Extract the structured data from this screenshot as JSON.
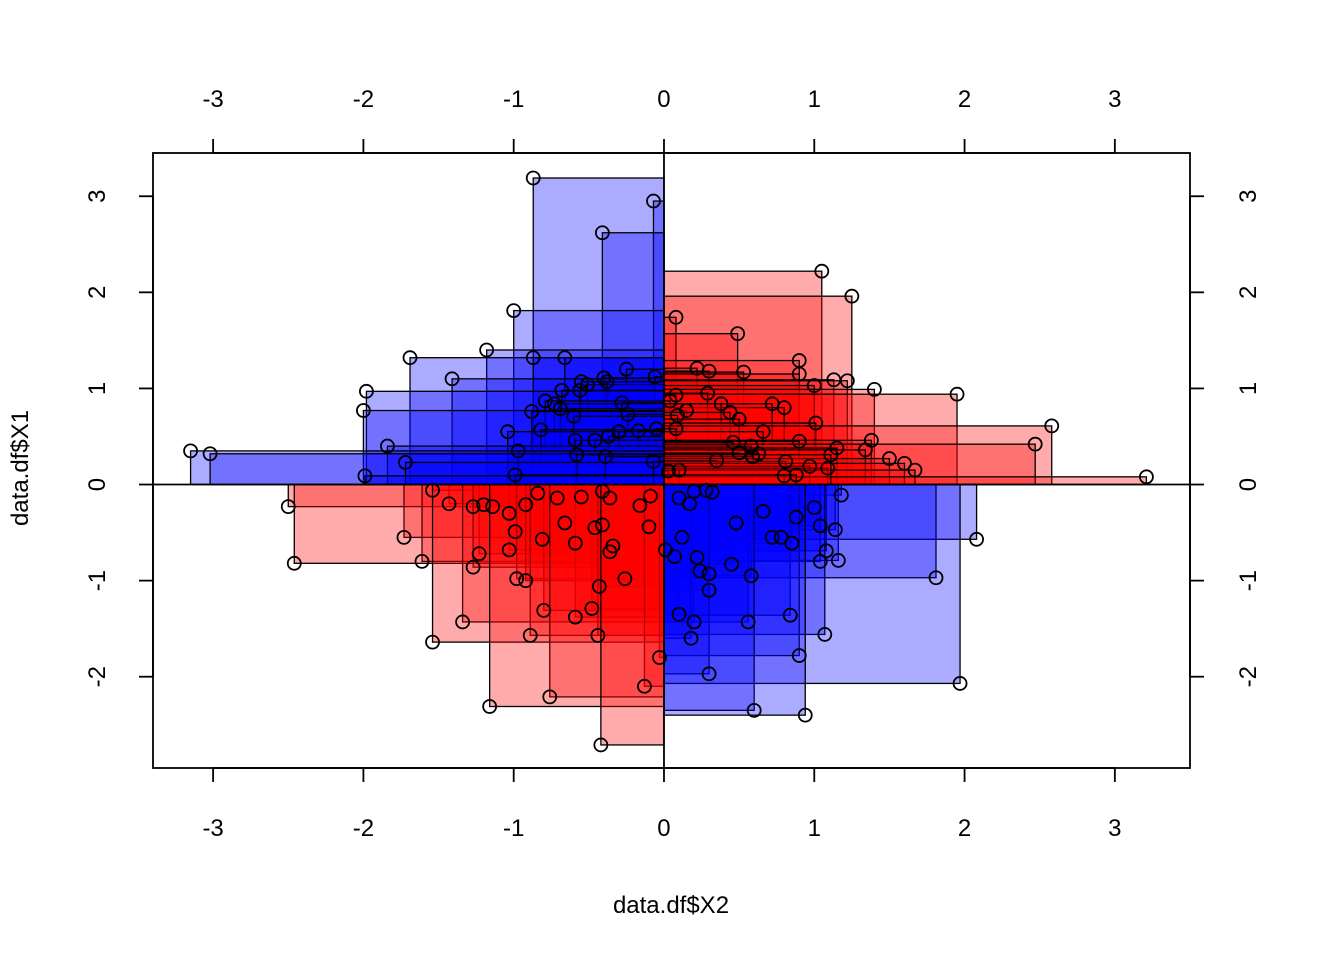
{
  "chart_data": {
    "type": "scatter",
    "title": "",
    "xlabel": "data.df$X2",
    "ylabel": "data.df$X1",
    "xlim": [
      -3.4,
      3.5
    ],
    "ylim": [
      -2.95,
      3.45
    ],
    "x_ticks": [
      -3,
      -2,
      -1,
      0,
      1,
      2,
      3
    ],
    "y_ticks": [
      -2,
      -1,
      0,
      1,
      2,
      3
    ],
    "x_tick_labels": [
      "-3",
      "-2",
      "-1",
      "0",
      "1",
      "2",
      "3"
    ],
    "y_tick_labels": [
      "-2",
      "-1",
      "0",
      "1",
      "2",
      "3"
    ],
    "grid": false,
    "reference_lines": {
      "x": 0,
      "y": 0
    },
    "rect_fill_opacity": 0.33,
    "colors": {
      "positive_product": "#ff0000",
      "negative_product": "#0000ff",
      "point_stroke": "#000000"
    },
    "points": [
      [
        -0.87,
        3.19
      ],
      [
        -0.07,
        2.95
      ],
      [
        -0.41,
        2.62
      ],
      [
        1.05,
        2.22
      ],
      [
        1.25,
        1.96
      ],
      [
        -1.0,
        1.81
      ],
      [
        0.08,
        1.74
      ],
      [
        0.49,
        1.57
      ],
      [
        -1.18,
        1.4
      ],
      [
        -1.69,
        1.32
      ],
      [
        -0.87,
        1.32
      ],
      [
        -0.66,
        1.32
      ],
      [
        0.9,
        1.29
      ],
      [
        -1.41,
        1.1
      ],
      [
        0.22,
        1.21
      ],
      [
        -0.25,
        1.2
      ],
      [
        0.3,
        1.18
      ],
      [
        0.53,
        1.17
      ],
      [
        -0.4,
        1.11
      ],
      [
        -0.55,
        1.07
      ],
      [
        -0.06,
        1.12
      ],
      [
        0.9,
        1.15
      ],
      [
        1.13,
        1.09
      ],
      [
        1.22,
        1.08
      ],
      [
        -0.51,
        1.04
      ],
      [
        -0.38,
        1.07
      ],
      [
        1.0,
        1.03
      ],
      [
        -1.98,
        0.97
      ],
      [
        -0.68,
        0.98
      ],
      [
        -0.56,
        0.98
      ],
      [
        1.4,
        0.99
      ],
      [
        1.95,
        0.94
      ],
      [
        0.08,
        0.93
      ],
      [
        0.29,
        0.95
      ],
      [
        -0.79,
        0.87
      ],
      [
        -0.73,
        0.84
      ],
      [
        0.04,
        0.87
      ],
      [
        -0.69,
        0.79
      ],
      [
        -0.28,
        0.85
      ],
      [
        0.15,
        0.77
      ],
      [
        -2.0,
        0.77
      ],
      [
        -0.88,
        0.76
      ],
      [
        0.8,
        0.8
      ],
      [
        0.72,
        0.84
      ],
      [
        0.38,
        0.84
      ],
      [
        -0.24,
        0.73
      ],
      [
        0.44,
        0.75
      ],
      [
        0.09,
        0.72
      ],
      [
        -0.6,
        0.71
      ],
      [
        0.5,
        0.68
      ],
      [
        1.01,
        0.64
      ],
      [
        2.58,
        0.61
      ],
      [
        -0.82,
        0.57
      ],
      [
        -0.05,
        0.58
      ],
      [
        0.08,
        0.58
      ],
      [
        -1.04,
        0.55
      ],
      [
        -0.17,
        0.56
      ],
      [
        -0.3,
        0.55
      ],
      [
        0.66,
        0.55
      ],
      [
        -0.37,
        0.5
      ],
      [
        1.38,
        0.46
      ],
      [
        -0.46,
        0.46
      ],
      [
        -0.59,
        0.46
      ],
      [
        0.9,
        0.45
      ],
      [
        -1.84,
        0.4
      ],
      [
        0.46,
        0.44
      ],
      [
        0.58,
        0.4
      ],
      [
        2.47,
        0.42
      ],
      [
        1.15,
        0.38
      ],
      [
        -0.97,
        0.35
      ],
      [
        0.5,
        0.33
      ],
      [
        -3.15,
        0.35
      ],
      [
        -3.02,
        0.32
      ],
      [
        1.34,
        0.36
      ],
      [
        0.63,
        0.32
      ],
      [
        -0.58,
        0.31
      ],
      [
        0.59,
        0.29
      ],
      [
        -0.39,
        0.29
      ],
      [
        1.5,
        0.27
      ],
      [
        -1.72,
        0.23
      ],
      [
        -0.07,
        0.24
      ],
      [
        0.35,
        0.25
      ],
      [
        0.81,
        0.24
      ],
      [
        1.6,
        0.22
      ],
      [
        0.97,
        0.19
      ],
      [
        1.09,
        0.17
      ],
      [
        1.67,
        0.15
      ],
      [
        0.03,
        0.14
      ],
      [
        0.1,
        0.15
      ],
      [
        -0.99,
        0.1
      ],
      [
        -1.99,
        0.09
      ],
      [
        3.21,
        0.08
      ],
      [
        0.8,
        0.09
      ],
      [
        1.11,
        0.31
      ],
      [
        0.88,
        0.1
      ],
      [
        -0.41,
        -0.07
      ],
      [
        -0.09,
        -0.12
      ],
      [
        -0.55,
        -0.13
      ],
      [
        -0.84,
        -0.09
      ],
      [
        -1.54,
        -0.06
      ],
      [
        0.2,
        -0.07
      ],
      [
        0.28,
        -0.06
      ],
      [
        0.32,
        -0.08
      ],
      [
        1.18,
        -0.11
      ],
      [
        -0.71,
        -0.14
      ],
      [
        -0.36,
        -0.14
      ],
      [
        0.1,
        -0.14
      ],
      [
        -1.14,
        -0.23
      ],
      [
        -1.2,
        -0.21
      ],
      [
        -1.27,
        -0.23
      ],
      [
        -0.92,
        -0.21
      ],
      [
        -1.43,
        -0.2
      ],
      [
        0.17,
        -0.2
      ],
      [
        -0.16,
        -0.22
      ],
      [
        1.0,
        -0.24
      ],
      [
        -2.5,
        -0.23
      ],
      [
        -1.03,
        -0.3
      ],
      [
        0.88,
        -0.34
      ],
      [
        0.66,
        -0.28
      ],
      [
        1.04,
        -0.43
      ],
      [
        0.48,
        -0.4
      ],
      [
        -0.41,
        -0.42
      ],
      [
        -0.46,
        -0.45
      ],
      [
        -0.66,
        -0.4
      ],
      [
        -0.1,
        -0.44
      ],
      [
        -0.99,
        -0.49
      ],
      [
        -1.73,
        -0.55
      ],
      [
        0.72,
        -0.55
      ],
      [
        0.78,
        -0.55
      ],
      [
        1.14,
        -0.47
      ],
      [
        0.12,
        -0.55
      ],
      [
        -0.81,
        -0.57
      ],
      [
        -0.59,
        -0.61
      ],
      [
        -0.34,
        -0.64
      ],
      [
        -0.36,
        -0.7
      ],
      [
        2.08,
        -0.57
      ],
      [
        -1.23,
        -0.72
      ],
      [
        -1.03,
        -0.68
      ],
      [
        0.01,
        -0.68
      ],
      [
        0.07,
        -0.75
      ],
      [
        1.08,
        -0.69
      ],
      [
        0.85,
        -0.61
      ],
      [
        0.45,
        -0.83
      ],
      [
        0.22,
        -0.76
      ],
      [
        -1.61,
        -0.8
      ],
      [
        -2.46,
        -0.82
      ],
      [
        -1.27,
        -0.86
      ],
      [
        1.04,
        -0.8
      ],
      [
        1.16,
        -0.79
      ],
      [
        0.24,
        -0.9
      ],
      [
        0.3,
        -0.93
      ],
      [
        0.58,
        -0.95
      ],
      [
        1.81,
        -0.97
      ],
      [
        -0.98,
        -0.98
      ],
      [
        -0.92,
        -1.0
      ],
      [
        -0.26,
        -0.98
      ],
      [
        -0.43,
        -1.06
      ],
      [
        0.3,
        -1.1
      ],
      [
        -0.48,
        -1.29
      ],
      [
        -0.8,
        -1.31
      ],
      [
        0.1,
        -1.35
      ],
      [
        0.84,
        -1.36
      ],
      [
        -0.59,
        -1.38
      ],
      [
        -1.34,
        -1.43
      ],
      [
        0.2,
        -1.43
      ],
      [
        0.56,
        -1.43
      ],
      [
        -0.89,
        -1.57
      ],
      [
        -0.44,
        -1.57
      ],
      [
        1.07,
        -1.56
      ],
      [
        0.18,
        -1.6
      ],
      [
        -1.54,
        -1.64
      ],
      [
        -0.03,
        -1.8
      ],
      [
        0.9,
        -1.78
      ],
      [
        0.3,
        -1.97
      ],
      [
        -0.13,
        -2.1
      ],
      [
        1.97,
        -2.07
      ],
      [
        -0.76,
        -2.21
      ],
      [
        -1.16,
        -2.31
      ],
      [
        0.6,
        -2.35
      ],
      [
        0.94,
        -2.4
      ],
      [
        -0.42,
        -2.71
      ]
    ]
  }
}
